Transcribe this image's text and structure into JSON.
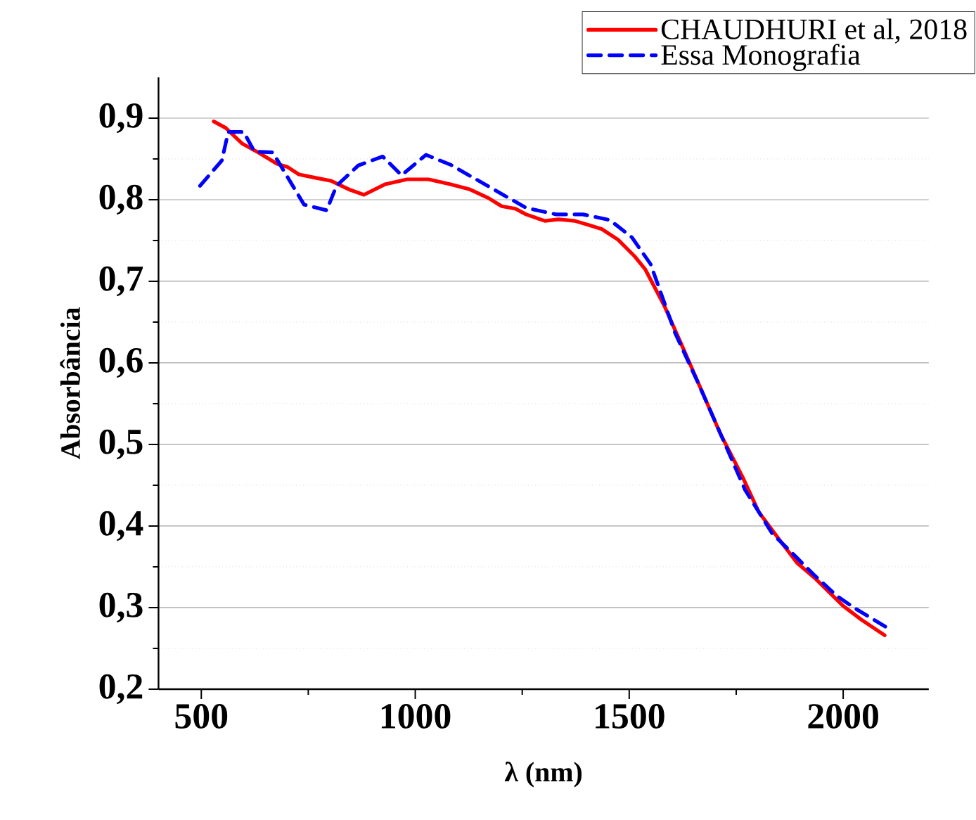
{
  "chart_data": {
    "type": "line",
    "xlabel": "λ (nm)",
    "ylabel": "Absorbância",
    "xlim": [
      400,
      2200
    ],
    "ylim": [
      0.2,
      0.95
    ],
    "xticks": [
      500,
      {
        "value": 750,
        "label": null
      },
      1000,
      {
        "value": 1250,
        "label": null
      },
      1500,
      {
        "value": 1750,
        "label": null
      },
      2000
    ],
    "yticks": [
      {
        "value": 0.2,
        "label": "0,2"
      },
      {
        "value": 0.25,
        "label": null
      },
      {
        "value": 0.3,
        "label": "0,3"
      },
      {
        "value": 0.35,
        "label": null
      },
      {
        "value": 0.4,
        "label": "0,4"
      },
      {
        "value": 0.45,
        "label": null
      },
      {
        "value": 0.5,
        "label": "0,5"
      },
      {
        "value": 0.55,
        "label": null
      },
      {
        "value": 0.6,
        "label": "0,6"
      },
      {
        "value": 0.65,
        "label": null
      },
      {
        "value": 0.7,
        "label": "0,7"
      },
      {
        "value": 0.75,
        "label": null
      },
      {
        "value": 0.8,
        "label": "0,8"
      },
      {
        "value": 0.85,
        "label": null
      },
      {
        "value": 0.9,
        "label": "0,9"
      }
    ],
    "grid": "y",
    "legend": "top right",
    "series": [
      {
        "name": "CHAUDHURI et al, 2018",
        "color": "#ff0000",
        "line_style": "solid",
        "x": [
          529,
          557,
          595,
          633,
          677,
          702,
          728,
          765,
          804,
          848,
          880,
          930,
          981,
          1031,
          1082,
          1126,
          1171,
          1202,
          1234,
          1259,
          1303,
          1335,
          1373,
          1411,
          1436,
          1474,
          1512,
          1537,
          1582,
          1626,
          1670,
          1714,
          1765,
          1803,
          1854,
          1892,
          1936,
          2000,
          2043,
          2097
        ],
        "values": [
          0.896,
          0.888,
          0.869,
          0.858,
          0.844,
          0.84,
          0.831,
          0.827,
          0.823,
          0.812,
          0.806,
          0.819,
          0.825,
          0.825,
          0.819,
          0.813,
          0.802,
          0.792,
          0.789,
          0.782,
          0.774,
          0.776,
          0.774,
          0.768,
          0.764,
          0.751,
          0.731,
          0.715,
          0.67,
          0.618,
          0.565,
          0.512,
          0.46,
          0.417,
          0.381,
          0.355,
          0.335,
          0.302,
          0.285,
          0.266
        ]
      },
      {
        "name": "Essa Monografia",
        "color": "#0000ff",
        "line_style": "dashed",
        "x": [
          497,
          548,
          563,
          599,
          624,
          667,
          740,
          793,
          816,
          867,
          924,
          968,
          1025,
          1082,
          1259,
          1329,
          1392,
          1455,
          1506,
          1550,
          1607,
          1664,
          1771,
          1834,
          1892,
          1930,
          1986,
          2028,
          2107
        ],
        "values": [
          0.817,
          0.848,
          0.883,
          0.883,
          0.859,
          0.858,
          0.794,
          0.787,
          0.817,
          0.842,
          0.853,
          0.83,
          0.855,
          0.843,
          0.79,
          0.782,
          0.782,
          0.775,
          0.754,
          0.721,
          0.637,
          0.572,
          0.444,
          0.391,
          0.361,
          0.341,
          0.314,
          0.299,
          0.274
        ]
      }
    ]
  }
}
